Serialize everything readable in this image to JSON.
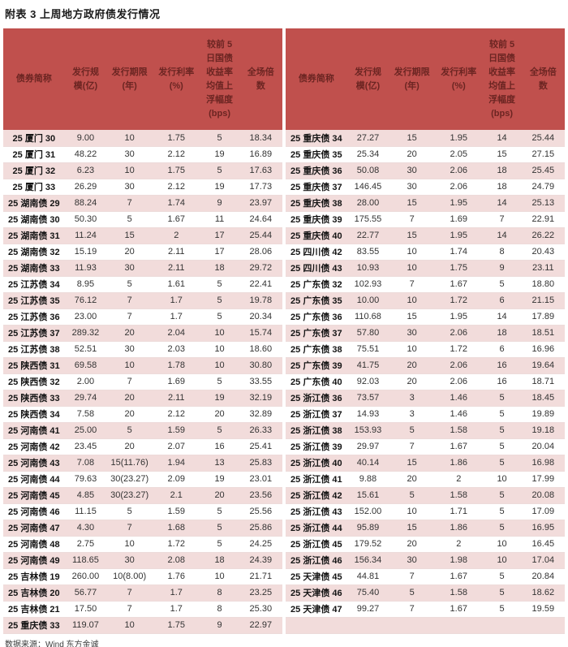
{
  "title": "附表 3 上周地方政府债发行情况",
  "source": "数据来源：Wind 东方金诚",
  "columns": [
    "债券简称",
    "发行规模(亿)",
    "发行期限(年)",
    "发行利率(%)",
    "较前 5 日国债收益率均值上浮幅度(bps)",
    "全场倍数"
  ],
  "colors": {
    "header_bg": "#C0504D",
    "header_text": "#6B2522",
    "row_alt": "#F2DCDB",
    "row_border": "#EDDBDA",
    "body_text": "#333333",
    "divider": "#FFFFFF"
  },
  "left_table": {
    "rows": [
      [
        "25 厦门 30",
        "9.00",
        "10",
        "1.75",
        "5",
        "18.34"
      ],
      [
        "25 厦门 31",
        "48.22",
        "30",
        "2.12",
        "19",
        "16.89"
      ],
      [
        "25 厦门 32",
        "6.23",
        "10",
        "1.75",
        "5",
        "17.63"
      ],
      [
        "25 厦门 33",
        "26.29",
        "30",
        "2.12",
        "19",
        "17.73"
      ],
      [
        "25 湖南债 29",
        "88.24",
        "7",
        "1.74",
        "9",
        "23.97"
      ],
      [
        "25 湖南债 30",
        "50.30",
        "5",
        "1.67",
        "11",
        "24.64"
      ],
      [
        "25 湖南债 31",
        "11.24",
        "15",
        "2",
        "17",
        "25.44"
      ],
      [
        "25 湖南债 32",
        "15.19",
        "20",
        "2.11",
        "17",
        "28.06"
      ],
      [
        "25 湖南债 33",
        "11.93",
        "30",
        "2.11",
        "18",
        "29.72"
      ],
      [
        "25 江苏债 34",
        "8.95",
        "5",
        "1.61",
        "5",
        "22.41"
      ],
      [
        "25 江苏债 35",
        "76.12",
        "7",
        "1.7",
        "5",
        "19.78"
      ],
      [
        "25 江苏债 36",
        "23.00",
        "7",
        "1.7",
        "5",
        "20.34"
      ],
      [
        "25 江苏债 37",
        "289.32",
        "20",
        "2.04",
        "10",
        "15.74"
      ],
      [
        "25 江苏债 38",
        "52.51",
        "30",
        "2.03",
        "10",
        "18.60"
      ],
      [
        "25 陕西债 31",
        "69.58",
        "10",
        "1.78",
        "10",
        "30.80"
      ],
      [
        "25 陕西债 32",
        "2.00",
        "7",
        "1.69",
        "5",
        "33.55"
      ],
      [
        "25 陕西债 33",
        "29.74",
        "20",
        "2.11",
        "19",
        "32.19"
      ],
      [
        "25 陕西债 34",
        "7.58",
        "20",
        "2.12",
        "20",
        "32.89"
      ],
      [
        "25 河南债 41",
        "25.00",
        "5",
        "1.59",
        "5",
        "26.33"
      ],
      [
        "25 河南债 42",
        "23.45",
        "20",
        "2.07",
        "16",
        "25.41"
      ],
      [
        "25 河南债 43",
        "7.08",
        "15(11.76)",
        "1.94",
        "13",
        "25.83"
      ],
      [
        "25 河南债 44",
        "79.63",
        "30(23.27)",
        "2.09",
        "19",
        "23.01"
      ],
      [
        "25 河南债 45",
        "4.85",
        "30(23.27)",
        "2.1",
        "20",
        "23.56"
      ],
      [
        "25 河南债 46",
        "11.15",
        "5",
        "1.59",
        "5",
        "25.56"
      ],
      [
        "25 河南债 47",
        "4.30",
        "7",
        "1.68",
        "5",
        "25.86"
      ],
      [
        "25 河南债 48",
        "2.75",
        "10",
        "1.72",
        "5",
        "24.25"
      ],
      [
        "25 河南债 49",
        "118.65",
        "30",
        "2.08",
        "18",
        "24.39"
      ],
      [
        "25 吉林债 19",
        "260.00",
        "10(8.00)",
        "1.76",
        "10",
        "21.71"
      ],
      [
        "25 吉林债 20",
        "56.77",
        "7",
        "1.7",
        "8",
        "23.25"
      ],
      [
        "25 吉林债 21",
        "17.50",
        "7",
        "1.7",
        "8",
        "25.30"
      ],
      [
        "25 重庆债 33",
        "119.07",
        "10",
        "1.75",
        "9",
        "22.97"
      ]
    ]
  },
  "right_table": {
    "rows": [
      [
        "25 重庆债 34",
        "27.27",
        "15",
        "1.95",
        "14",
        "25.44"
      ],
      [
        "25 重庆债 35",
        "25.34",
        "20",
        "2.05",
        "15",
        "27.15"
      ],
      [
        "25 重庆债 36",
        "50.08",
        "30",
        "2.06",
        "18",
        "25.45"
      ],
      [
        "25 重庆债 37",
        "146.45",
        "30",
        "2.06",
        "18",
        "24.79"
      ],
      [
        "25 重庆债 38",
        "28.00",
        "15",
        "1.95",
        "14",
        "25.13"
      ],
      [
        "25 重庆债 39",
        "175.55",
        "7",
        "1.69",
        "7",
        "22.91"
      ],
      [
        "25 重庆债 40",
        "22.77",
        "15",
        "1.95",
        "14",
        "26.22"
      ],
      [
        "25 四川债 42",
        "83.55",
        "10",
        "1.74",
        "8",
        "20.43"
      ],
      [
        "25 四川债 43",
        "10.93",
        "10",
        "1.75",
        "9",
        "23.11"
      ],
      [
        "25 广东债 32",
        "102.93",
        "7",
        "1.67",
        "5",
        "18.80"
      ],
      [
        "25 广东债 35",
        "10.00",
        "10",
        "1.72",
        "6",
        "21.15"
      ],
      [
        "25 广东债 36",
        "110.68",
        "15",
        "1.95",
        "14",
        "17.89"
      ],
      [
        "25 广东债 37",
        "57.80",
        "30",
        "2.06",
        "18",
        "18.51"
      ],
      [
        "25 广东债 38",
        "75.51",
        "10",
        "1.72",
        "6",
        "16.96"
      ],
      [
        "25 广东债 39",
        "41.75",
        "20",
        "2.06",
        "16",
        "19.64"
      ],
      [
        "25 广东债 40",
        "92.03",
        "20",
        "2.06",
        "16",
        "18.71"
      ],
      [
        "25 浙江债 36",
        "73.57",
        "3",
        "1.46",
        "5",
        "18.45"
      ],
      [
        "25 浙江债 37",
        "14.93",
        "3",
        "1.46",
        "5",
        "19.89"
      ],
      [
        "25 浙江债 38",
        "153.93",
        "5",
        "1.58",
        "5",
        "19.18"
      ],
      [
        "25 浙江债 39",
        "29.97",
        "7",
        "1.67",
        "5",
        "20.04"
      ],
      [
        "25 浙江债 40",
        "40.14",
        "15",
        "1.86",
        "5",
        "16.98"
      ],
      [
        "25 浙江债 41",
        "9.88",
        "20",
        "2",
        "10",
        "17.99"
      ],
      [
        "25 浙江债 42",
        "15.61",
        "5",
        "1.58",
        "5",
        "20.08"
      ],
      [
        "25 浙江债 43",
        "152.00",
        "10",
        "1.71",
        "5",
        "17.09"
      ],
      [
        "25 浙江债 44",
        "95.89",
        "15",
        "1.86",
        "5",
        "16.95"
      ],
      [
        "25 浙江债 45",
        "179.52",
        "20",
        "2",
        "10",
        "16.45"
      ],
      [
        "25 浙江债 46",
        "156.34",
        "30",
        "1.98",
        "10",
        "17.04"
      ],
      [
        "25 天津债 45",
        "44.81",
        "7",
        "1.67",
        "5",
        "20.84"
      ],
      [
        "25 天津债 46",
        "75.40",
        "5",
        "1.58",
        "5",
        "18.62"
      ],
      [
        "25 天津债 47",
        "99.27",
        "7",
        "1.67",
        "5",
        "19.59"
      ],
      [
        "",
        "",
        "",
        "",
        "",
        ""
      ]
    ]
  }
}
